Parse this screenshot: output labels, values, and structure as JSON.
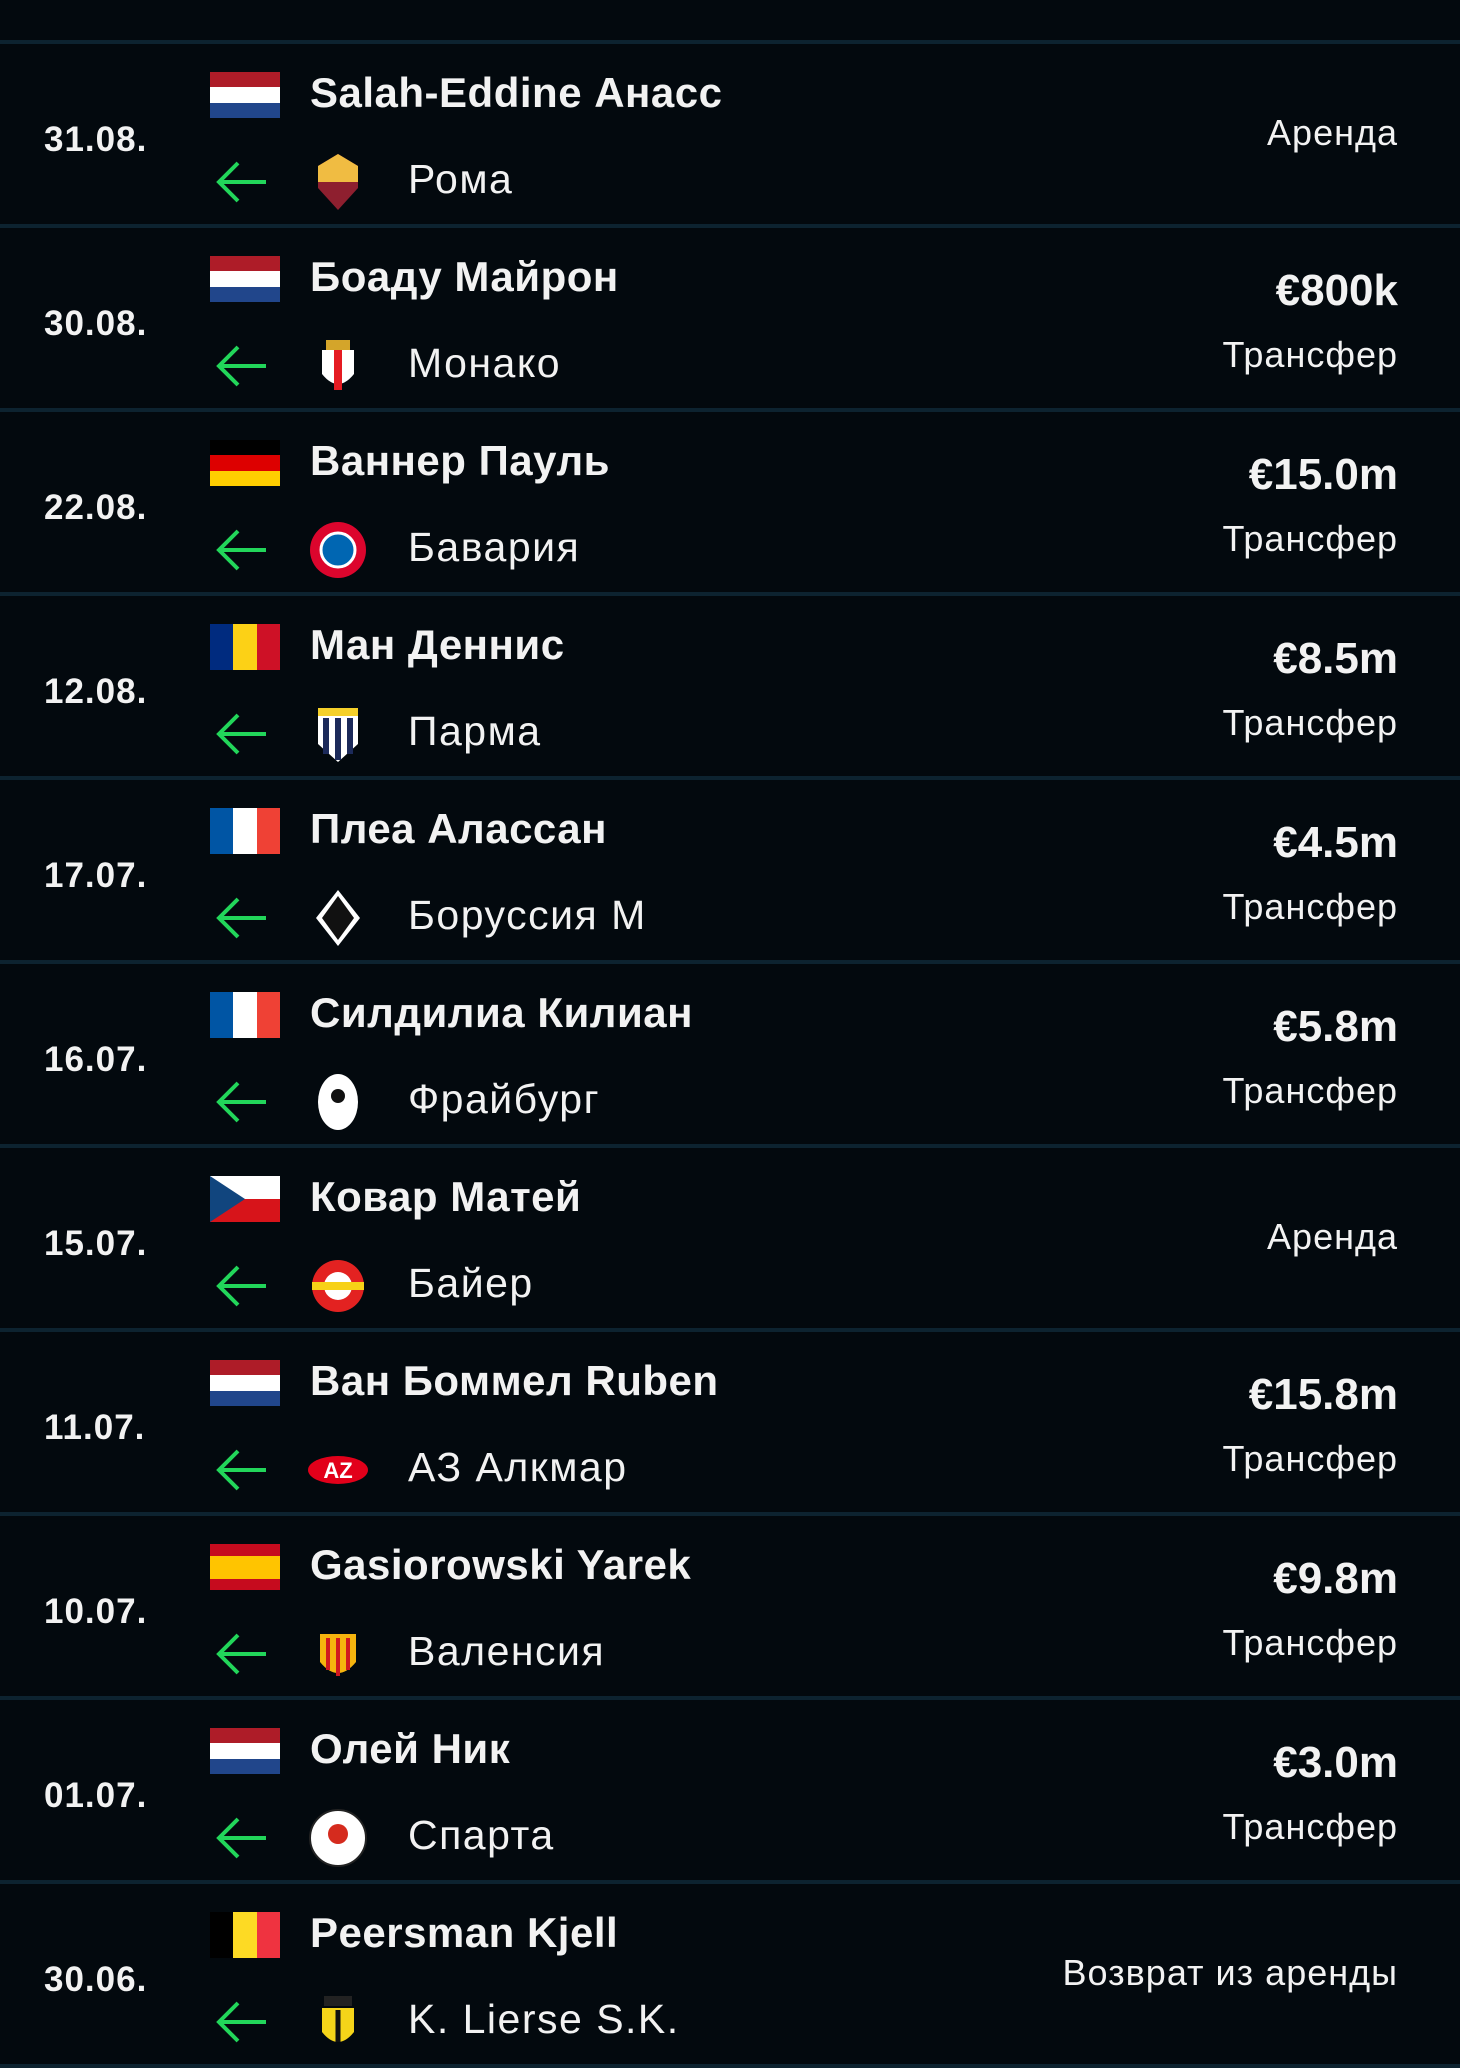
{
  "colors": {
    "background": "#03090e",
    "divider": "#0d2330",
    "arrow": "#22d65a",
    "text": "#f2f2f2"
  },
  "transfers": [
    {
      "date": "31.08.",
      "player": "Salah-Eddine Анасс",
      "flag": "netherlands",
      "club": "Рома",
      "logo": "roma-crest",
      "direction": "arrow-left-icon",
      "amount": "",
      "type": "Аренда"
    },
    {
      "date": "30.08.",
      "player": "Боаду Майрон",
      "flag": "netherlands",
      "club": "Монако",
      "logo": "monaco-crest",
      "direction": "arrow-left-icon",
      "amount": "€800k",
      "type": "Трансфер"
    },
    {
      "date": "22.08.",
      "player": "Ваннер Пауль",
      "flag": "germany",
      "club": "Бавария",
      "logo": "bayern-crest",
      "direction": "arrow-left-icon",
      "amount": "€15.0m",
      "type": "Трансфер"
    },
    {
      "date": "12.08.",
      "player": "Ман Деннис",
      "flag": "romania",
      "club": "Парма",
      "logo": "parma-crest",
      "direction": "arrow-left-icon",
      "amount": "€8.5m",
      "type": "Трансфер"
    },
    {
      "date": "17.07.",
      "player": "Плеа Алассан",
      "flag": "france",
      "club": "Боруссия М",
      "logo": "gladbach-crest",
      "direction": "arrow-left-icon",
      "amount": "€4.5m",
      "type": "Трансфер"
    },
    {
      "date": "16.07.",
      "player": "Силдилиа Килиан",
      "flag": "france",
      "club": "Фрайбург",
      "logo": "freiburg-crest",
      "direction": "arrow-left-icon",
      "amount": "€5.8m",
      "type": "Трансфер"
    },
    {
      "date": "15.07.",
      "player": "Ковар Матей",
      "flag": "czechia",
      "club": "Байер",
      "logo": "leverkusen-crest",
      "direction": "arrow-left-icon",
      "amount": "",
      "type": "Аренда"
    },
    {
      "date": "11.07.",
      "player": "Ван Боммел Ruben",
      "flag": "netherlands",
      "club": "АЗ Алкмар",
      "logo": "az-crest",
      "direction": "arrow-left-icon",
      "amount": "€15.8m",
      "type": "Трансфер"
    },
    {
      "date": "10.07.",
      "player": "Gasiorowski Yarek",
      "flag": "spain",
      "club": "Валенсия",
      "logo": "valencia-crest",
      "direction": "arrow-left-icon",
      "amount": "€9.8m",
      "type": "Трансфер"
    },
    {
      "date": "01.07.",
      "player": "Олей Ник",
      "flag": "netherlands",
      "club": "Спарта",
      "logo": "sparta-crest",
      "direction": "arrow-left-icon",
      "amount": "€3.0m",
      "type": "Трансфер"
    },
    {
      "date": "30.06.",
      "player": "Peersman Kjell",
      "flag": "belgium",
      "club": "K. Lierse S.K.",
      "logo": "lierse-crest",
      "direction": "arrow-left-icon",
      "amount": "",
      "type": "Возврат из аренды"
    }
  ]
}
